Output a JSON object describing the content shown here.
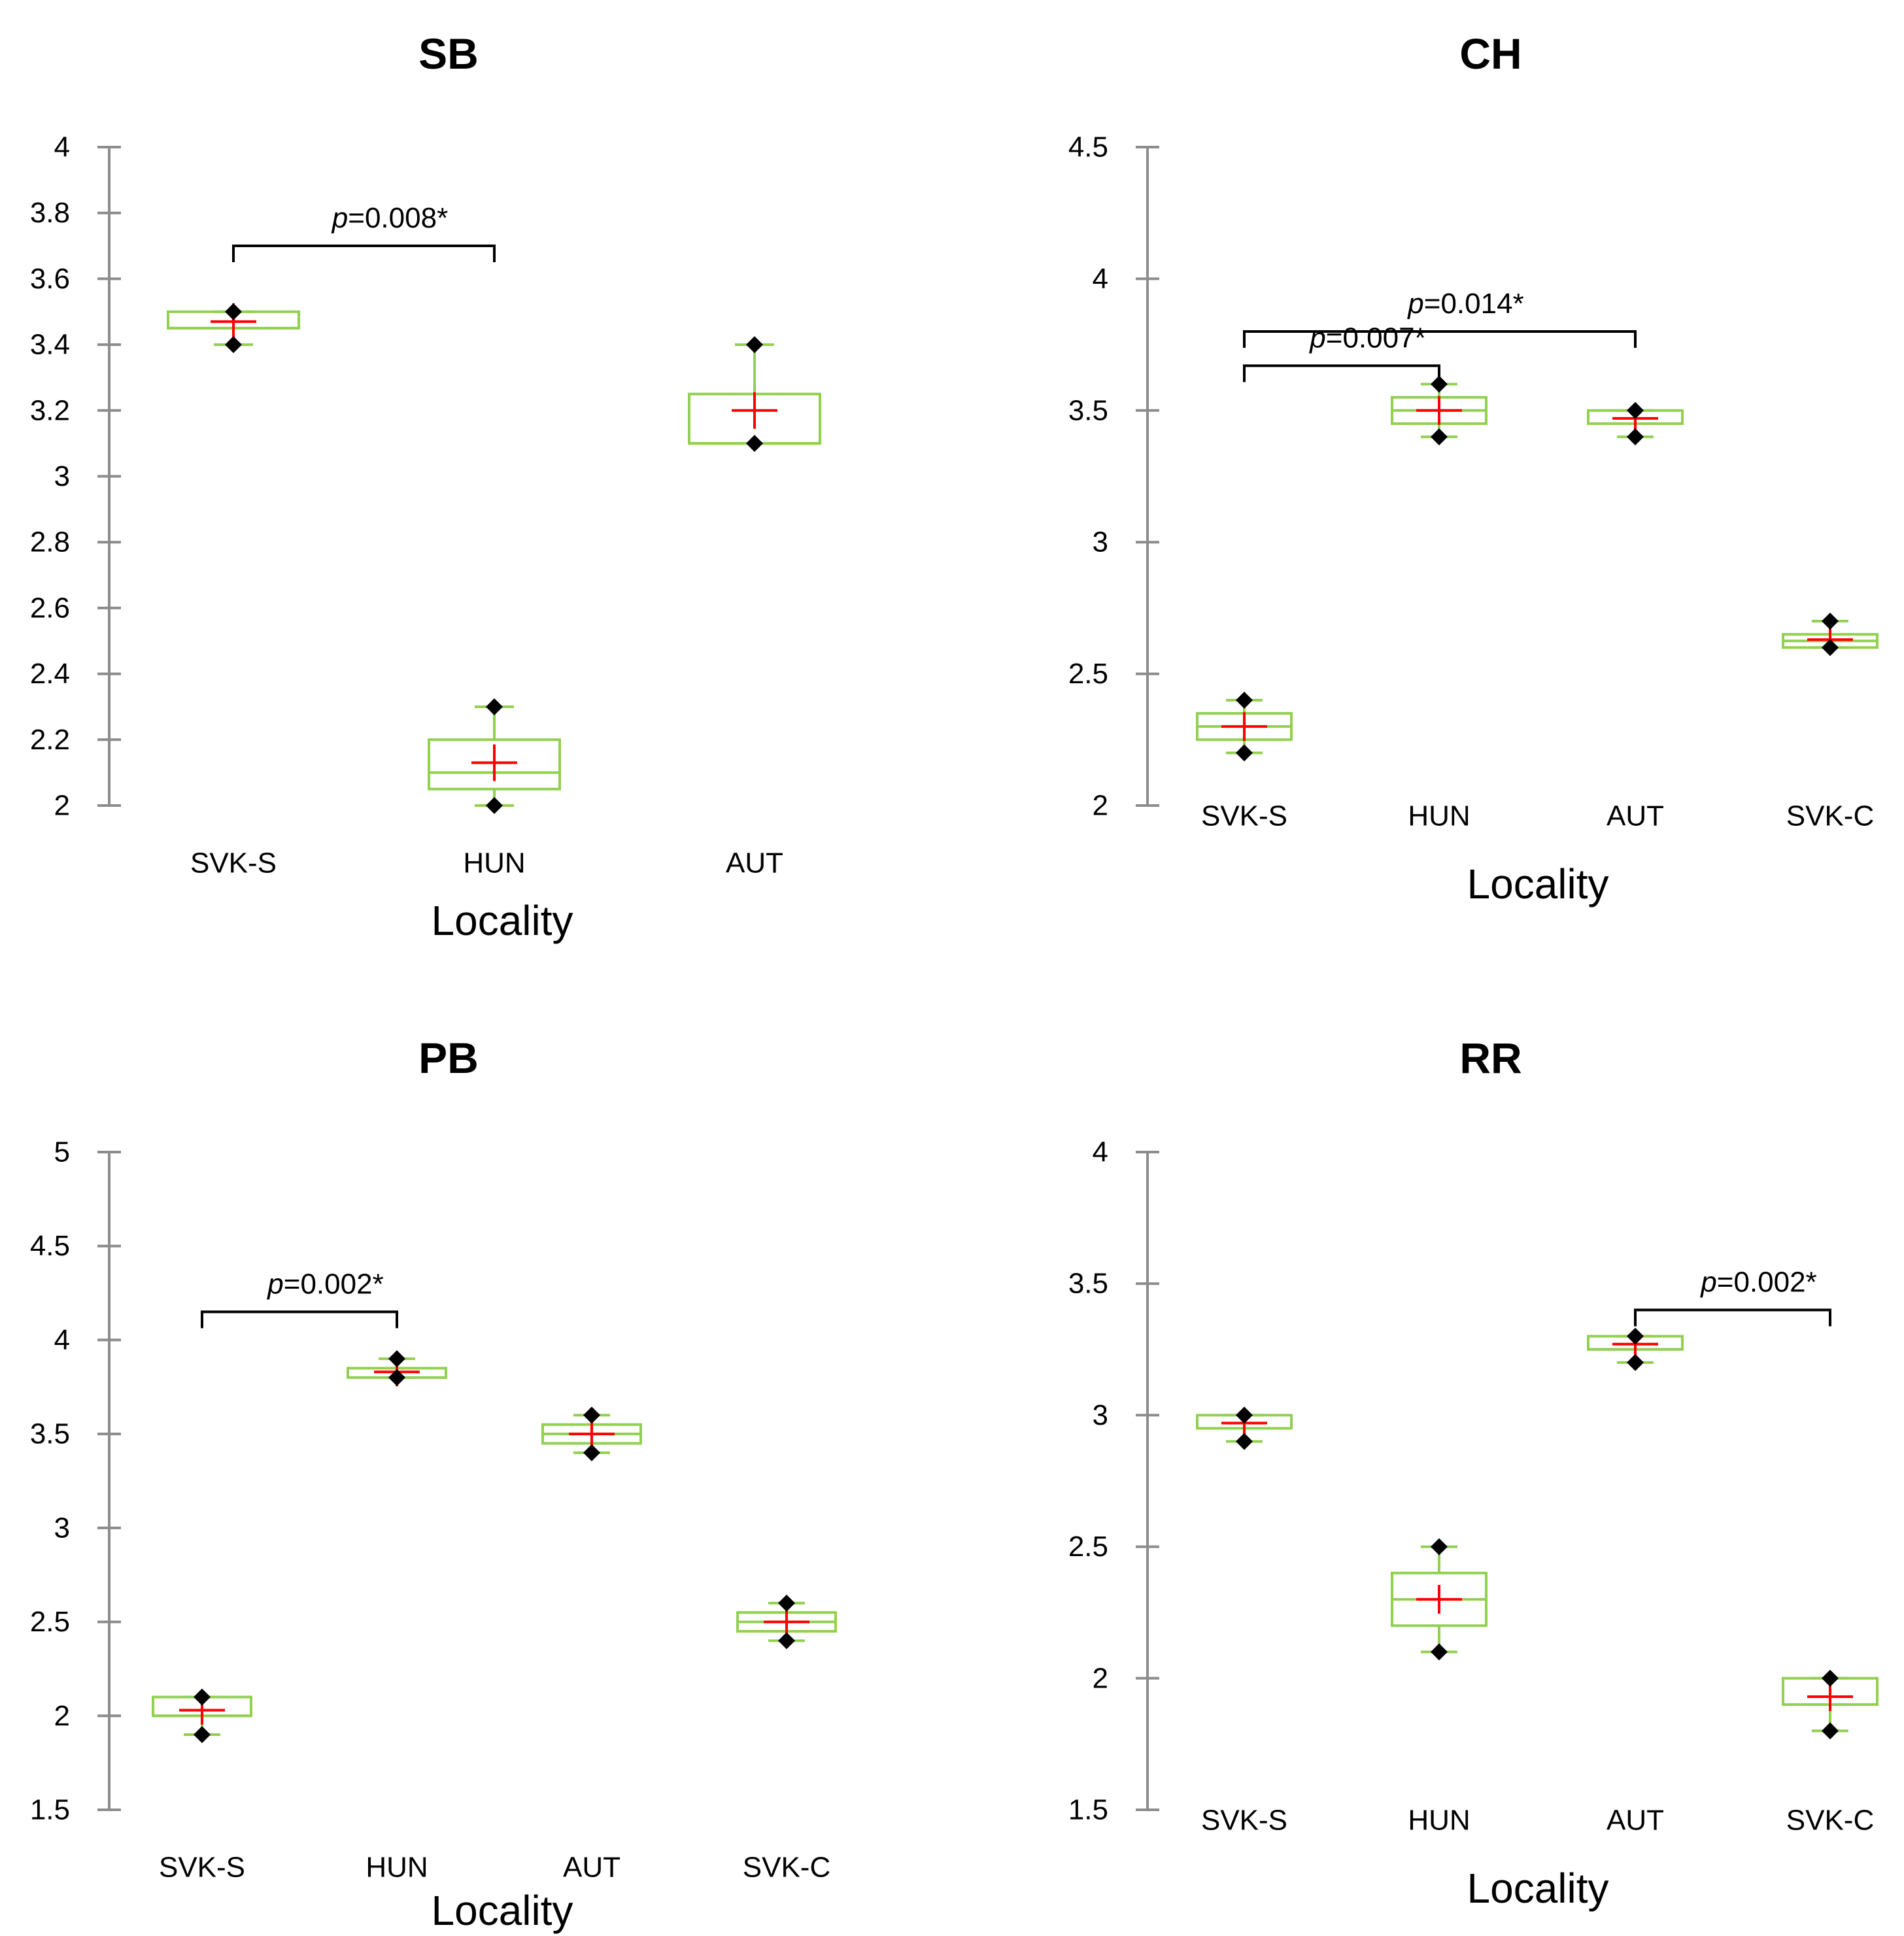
{
  "chart_data": [
    {
      "type": "boxplot",
      "title": "SB",
      "xlabel": "Locality",
      "ylabel": "",
      "ylim": [
        2,
        4
      ],
      "yticks": [
        "2",
        "2.2",
        "2.4",
        "2.6",
        "2.8",
        "3",
        "3.2",
        "3.4",
        "3.6",
        "3.8",
        "4"
      ],
      "categories": [
        "SVK-S",
        "HUN",
        "AUT"
      ],
      "boxes": [
        {
          "category": "SVK-S",
          "min": 3.4,
          "q1": 3.45,
          "median": 3.45,
          "q3": 3.5,
          "max": 3.5,
          "mean": 3.47,
          "points": [
            3.5,
            3.4
          ]
        },
        {
          "category": "HUN",
          "min": 2.0,
          "q1": 2.05,
          "median": 2.1,
          "q3": 2.2,
          "max": 2.3,
          "mean": 2.13,
          "points": [
            2.3,
            2.0
          ]
        },
        {
          "category": "AUT",
          "min": 3.1,
          "q1": 3.1,
          "median": 3.1,
          "q3": 3.25,
          "max": 3.4,
          "mean": 3.2,
          "points": [
            3.4,
            3.1
          ]
        }
      ],
      "comparisons": [
        {
          "from": "SVK-S",
          "to": "HUN",
          "p_symbol": "p",
          "p_value": "=0.008*",
          "y": 3.7
        }
      ]
    },
    {
      "type": "boxplot",
      "title": "CH",
      "xlabel": "Locality",
      "ylabel": "",
      "ylim": [
        2,
        4.5
      ],
      "yticks": [
        "2",
        "2.5",
        "3",
        "3.5",
        "4",
        "4.5"
      ],
      "categories": [
        "SVK-S",
        "HUN",
        "AUT",
        "SVK-C"
      ],
      "boxes": [
        {
          "category": "SVK-S",
          "min": 2.2,
          "q1": 2.25,
          "median": 2.3,
          "q3": 2.35,
          "max": 2.4,
          "mean": 2.3,
          "points": [
            2.4,
            2.2
          ]
        },
        {
          "category": "HUN",
          "min": 3.4,
          "q1": 3.45,
          "median": 3.5,
          "q3": 3.55,
          "max": 3.6,
          "mean": 3.5,
          "points": [
            3.6,
            3.4
          ]
        },
        {
          "category": "AUT",
          "min": 3.4,
          "q1": 3.45,
          "median": 3.45,
          "q3": 3.5,
          "max": 3.5,
          "mean": 3.47,
          "points": [
            3.5,
            3.4
          ]
        },
        {
          "category": "SVK-C",
          "min": 2.6,
          "q1": 2.6,
          "median": 2.625,
          "q3": 2.65,
          "max": 2.7,
          "mean": 2.63,
          "points": [
            2.7,
            2.6
          ]
        }
      ],
      "comparisons": [
        {
          "from": "SVK-S",
          "to": "AUT",
          "p_symbol": "p",
          "p_value": "=0.014*",
          "y": 3.8
        },
        {
          "from": "SVK-S",
          "to": "HUN",
          "p_symbol": "p",
          "p_value": "=0.007*",
          "y": 3.67
        }
      ]
    },
    {
      "type": "boxplot",
      "title": "PB",
      "xlabel": "Locality",
      "ylabel": "",
      "ylim": [
        1.5,
        5
      ],
      "yticks": [
        "1.5",
        "2",
        "2.5",
        "3",
        "3.5",
        "4",
        "4.5",
        "5"
      ],
      "categories": [
        "SVK-S",
        "HUN",
        "AUT",
        "SVK-C"
      ],
      "boxes": [
        {
          "category": "SVK-S",
          "min": 1.9,
          "q1": 2.0,
          "median": 2.0,
          "q3": 2.1,
          "max": 2.1,
          "mean": 2.03,
          "points": [
            2.1,
            1.9
          ]
        },
        {
          "category": "HUN",
          "min": 3.8,
          "q1": 3.8,
          "median": 3.85,
          "q3": 3.85,
          "max": 3.9,
          "mean": 3.83,
          "points": [
            3.9,
            3.8
          ]
        },
        {
          "category": "AUT",
          "min": 3.4,
          "q1": 3.45,
          "median": 3.5,
          "q3": 3.55,
          "max": 3.6,
          "mean": 3.5,
          "points": [
            3.6,
            3.4
          ]
        },
        {
          "category": "SVK-C",
          "min": 2.4,
          "q1": 2.45,
          "median": 2.5,
          "q3": 2.55,
          "max": 2.6,
          "mean": 2.5,
          "points": [
            2.6,
            2.4
          ]
        }
      ],
      "comparisons": [
        {
          "from": "SVK-S",
          "to": "HUN",
          "p_symbol": "p",
          "p_value": "=0.002*",
          "y": 4.15
        }
      ]
    },
    {
      "type": "boxplot",
      "title": "RR",
      "xlabel": "Locality",
      "ylabel": "",
      "ylim": [
        1.5,
        4
      ],
      "yticks": [
        "1.5",
        "2",
        "2.5",
        "3",
        "3.5",
        "4"
      ],
      "categories": [
        "SVK-S",
        "HUN",
        "AUT",
        "SVK-C"
      ],
      "boxes": [
        {
          "category": "SVK-S",
          "min": 2.9,
          "q1": 2.95,
          "median": 2.95,
          "q3": 3.0,
          "max": 3.0,
          "mean": 2.97,
          "points": [
            3.0,
            2.9
          ]
        },
        {
          "category": "HUN",
          "min": 2.1,
          "q1": 2.2,
          "median": 2.3,
          "q3": 2.4,
          "max": 2.5,
          "mean": 2.3,
          "points": [
            2.5,
            2.1
          ]
        },
        {
          "category": "AUT",
          "min": 3.2,
          "q1": 3.25,
          "median": 3.25,
          "q3": 3.3,
          "max": 3.3,
          "mean": 3.27,
          "points": [
            3.3,
            3.2
          ]
        },
        {
          "category": "SVK-C",
          "min": 1.8,
          "q1": 1.9,
          "median": 1.9,
          "q3": 2.0,
          "max": 2.0,
          "mean": 1.93,
          "points": [
            2.0,
            1.8
          ]
        }
      ],
      "comparisons": [
        {
          "from": "AUT",
          "to": "SVK-C",
          "p_symbol": "p",
          "p_value": "=0.002*",
          "y": 3.4
        }
      ]
    }
  ],
  "colors": {
    "axis": "#8c8c8c",
    "box": "#92d050",
    "mean": "#ff0000",
    "points": "#000000",
    "bracket": "#000000"
  }
}
